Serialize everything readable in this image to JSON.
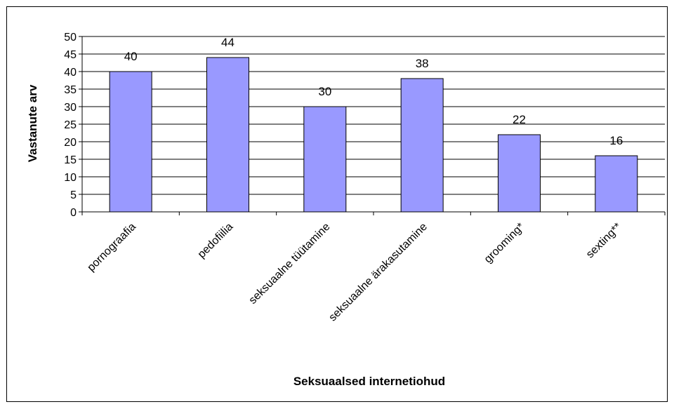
{
  "chart_data": {
    "type": "bar",
    "title": "",
    "xlabel": "Seksuaalsed internetiohud",
    "ylabel": "Vastanute arv",
    "categories": [
      "pornograafia",
      "pedofiilia",
      "seksuaalne tüütamine",
      "seksuaalne ärakasutamine",
      "grooming*",
      "sexting**"
    ],
    "values": [
      40,
      44,
      30,
      38,
      22,
      16
    ],
    "ylim": [
      0,
      50
    ],
    "yticks": [
      0,
      5,
      10,
      15,
      20,
      25,
      30,
      35,
      40,
      45,
      50
    ],
    "grid": true,
    "legend": "none",
    "data_labels": true,
    "colors": {
      "bar_fill": "#9999FF",
      "bar_stroke": "#000000",
      "grid": "#000000"
    }
  }
}
